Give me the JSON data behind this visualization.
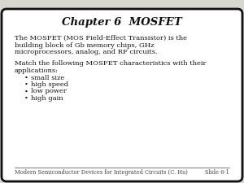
{
  "title": "Chapter 6  MOSFET",
  "paragraph1_lines": [
    "The MOSFET (MOS Field-Effect Transistor) is the",
    "building block of Gb memory chips, GHz",
    "microprocessors, analog, and RF circuits."
  ],
  "paragraph2_lines": [
    "Match the following MOSFET characteristics with their",
    "applications:"
  ],
  "bullets": [
    "small size",
    "high speed",
    "low power",
    "high gain"
  ],
  "footer_left": "Modern Semiconductor Devices for Integrated Circuits (C. Hu)",
  "footer_right": "Slide 6-1",
  "bg_color": "#d8d8d0",
  "box_color": "#ffffff",
  "border_color": "#111111",
  "text_color": "#111111",
  "footer_color": "#444444",
  "title_fontsize": 9.5,
  "body_fontsize": 6.0,
  "footer_fontsize": 4.8
}
